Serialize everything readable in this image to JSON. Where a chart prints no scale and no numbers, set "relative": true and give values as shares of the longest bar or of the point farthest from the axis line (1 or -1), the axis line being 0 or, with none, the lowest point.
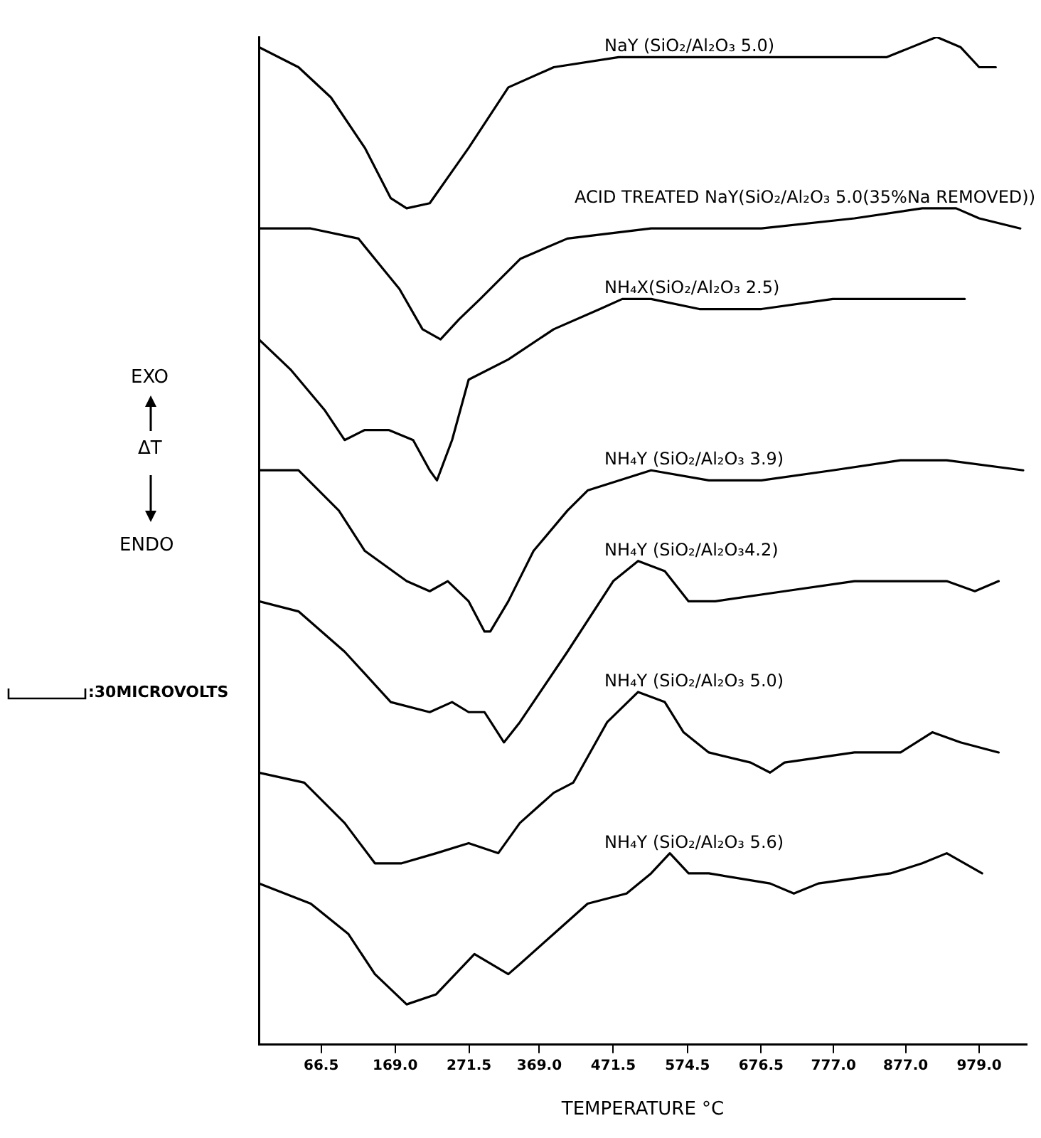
{
  "chart_data": {
    "type": "line",
    "relative": true,
    "xlabel": "TEMPERATURE °C",
    "annotations": [
      "EXO",
      "ΔT",
      "ENDO",
      ":30MICROVOLTS"
    ],
    "xlim": [
      -20,
      1045
    ],
    "xticks": [
      66.5,
      {
        "value": 169,
        "label": "169.0"
      },
      271.5,
      {
        "value": 369,
        "label": "369.0"
      },
      471.5,
      574.5,
      676.5,
      {
        "value": 777,
        "label": "777.0"
      },
      {
        "value": 877,
        "label": "877.0"
      },
      {
        "value": 979,
        "label": "979.0"
      }
    ],
    "marker": "none",
    "line_style": "solid",
    "legend": false,
    "grid": false,
    "series": [
      {
        "name": "NaY (SiO₂/Al₂O₃ 5.0)",
        "color": "#000000",
        "x": [
          -20,
          35,
          80,
          127,
          163,
          185,
          217,
          271,
          326,
          389,
          479,
          604,
          742,
          851,
          920,
          953,
          979,
          1002
        ],
        "values": [
          0.99,
          0.97,
          0.94,
          0.89,
          0.84,
          0.83,
          0.835,
          0.89,
          0.95,
          0.97,
          0.98,
          0.98,
          0.98,
          0.98,
          1.0,
          0.99,
          0.97,
          0.97
        ]
      },
      {
        "name": "ACID TREATED NaY(SiO₂/Al₂O₃ 5.0(35%Na REMOVED))",
        "color": "#000000",
        "x": [
          -20,
          52,
          118,
          152,
          175,
          207,
          232,
          258,
          287,
          343,
          408,
          524,
          677,
          806,
          900,
          947,
          979,
          1036
        ],
        "values": [
          0.81,
          0.81,
          0.8,
          0.77,
          0.75,
          0.71,
          0.7,
          0.72,
          0.74,
          0.78,
          0.8,
          0.81,
          0.81,
          0.82,
          0.83,
          0.83,
          0.82,
          0.81
        ]
      },
      {
        "name": "NH₄X(SiO₂/Al₂O₃ 2.5)",
        "color": "#000000",
        "x": [
          -20,
          24,
          71,
          99,
          127,
          160,
          194,
          217,
          227,
          248,
          271,
          326,
          389,
          453,
          484,
          524,
          591,
          677,
          776,
          870,
          959
        ],
        "values": [
          0.7,
          0.67,
          0.63,
          0.6,
          0.61,
          0.61,
          0.6,
          0.57,
          0.56,
          0.6,
          0.66,
          0.68,
          0.71,
          0.73,
          0.74,
          0.74,
          0.73,
          0.73,
          0.74,
          0.74,
          0.74
        ]
      },
      {
        "name": "NH₄Y (SiO₂/Al₂O₃ 3.9)",
        "color": "#000000",
        "x": [
          -20,
          35,
          91,
          127,
          185,
          217,
          242,
          271,
          293,
          301,
          326,
          361,
          408,
          436,
          524,
          604,
          677,
          776,
          870,
          934,
          1040
        ],
        "values": [
          0.57,
          0.57,
          0.53,
          0.49,
          0.46,
          0.45,
          0.46,
          0.44,
          0.41,
          0.41,
          0.44,
          0.49,
          0.53,
          0.55,
          0.57,
          0.56,
          0.56,
          0.57,
          0.58,
          0.58,
          0.57
        ]
      },
      {
        "name": "NH₄Y (SiO₂/Al₂O₃4.2)",
        "color": "#000000",
        "x": [
          -20,
          35,
          99,
          163,
          217,
          248,
          271,
          293,
          320,
          342,
          408,
          471.5,
          506,
          543,
          576,
          593,
          613,
          709,
          806,
          934,
          973,
          1006
        ],
        "values": [
          0.44,
          0.43,
          0.39,
          0.34,
          0.33,
          0.34,
          0.33,
          0.33,
          0.3,
          0.32,
          0.39,
          0.46,
          0.48,
          0.47,
          0.44,
          0.44,
          0.44,
          0.45,
          0.46,
          0.46,
          0.45,
          0.46
        ]
      },
      {
        "name": "NH₄Y (SiO₂/Al₂O₃ 5.0)",
        "color": "#000000",
        "x": [
          -20,
          43,
          99,
          141,
          178,
          226,
          271,
          312,
          342,
          389,
          416,
          463,
          506,
          543,
          569,
          604,
          662,
          689,
          709,
          806,
          870,
          914,
          953,
          1006
        ],
        "values": [
          0.27,
          0.26,
          0.22,
          0.18,
          0.18,
          0.19,
          0.2,
          0.19,
          0.22,
          0.25,
          0.26,
          0.32,
          0.35,
          0.34,
          0.31,
          0.29,
          0.28,
          0.27,
          0.28,
          0.29,
          0.29,
          0.31,
          0.3,
          0.29
        ]
      },
      {
        "name": "NH₄Y (SiO₂/Al₂O₃ 5.6)",
        "color": "#000000",
        "x": [
          -20,
          52,
          104,
          141,
          185,
          226,
          279,
          326,
          342,
          389,
          436,
          490,
          524,
          550,
          576,
          604,
          689,
          722,
          756,
          856,
          900,
          934,
          983
        ],
        "values": [
          0.16,
          0.14,
          0.11,
          0.07,
          0.04,
          0.05,
          0.09,
          0.07,
          0.08,
          0.11,
          0.14,
          0.15,
          0.17,
          0.19,
          0.17,
          0.17,
          0.16,
          0.15,
          0.16,
          0.17,
          0.18,
          0.19,
          0.17
        ]
      }
    ]
  }
}
